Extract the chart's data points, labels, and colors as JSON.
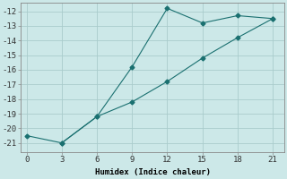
{
  "xlabel": "Humidex (Indice chaleur)",
  "ylabel": "",
  "background_color": "#cce8e8",
  "grid_color": "#aacccc",
  "line_color": "#1a7070",
  "line1_x": [
    0,
    3,
    6,
    9,
    12,
    15,
    18,
    21
  ],
  "line1_y": [
    -20.5,
    -21.0,
    -19.2,
    -15.8,
    -11.8,
    -12.8,
    -12.3,
    -12.5
  ],
  "line2_x": [
    3,
    6,
    9,
    12,
    15,
    18,
    21
  ],
  "line2_y": [
    -21.0,
    -19.2,
    -18.2,
    -16.8,
    -15.2,
    -13.8,
    -12.5
  ],
  "xlim": [
    -0.5,
    22
  ],
  "ylim": [
    -21.6,
    -11.4
  ],
  "xticks": [
    0,
    3,
    6,
    9,
    12,
    15,
    18,
    21
  ],
  "yticks": [
    -21,
    -20,
    -19,
    -18,
    -17,
    -16,
    -15,
    -14,
    -13,
    -12
  ],
  "fontsize": 6.5
}
